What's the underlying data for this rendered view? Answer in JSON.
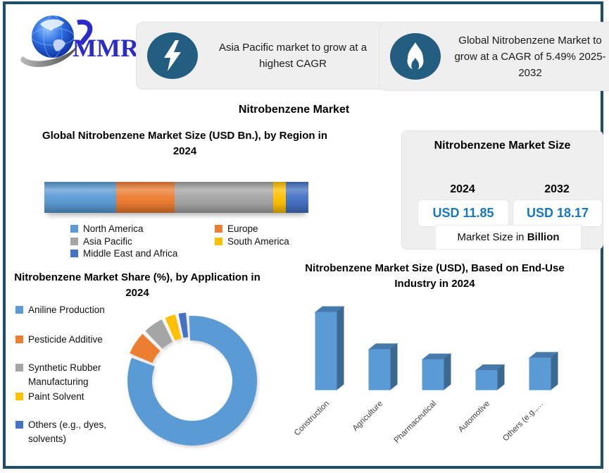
{
  "brand": {
    "logo_text": "MMR"
  },
  "heading": "Nitrobenzene Market",
  "callouts": [
    {
      "icon": "lightning-icon",
      "text": "Asia Pacific market to grow at a highest CAGR"
    },
    {
      "icon": "flame-icon",
      "text": "Global Nitrobenzene Market to grow at a CAGR of 5.49% 2025-2032"
    }
  ],
  "market_size_panel": {
    "title": "Nitrobenzene Market Size",
    "years": [
      "2024",
      "2032"
    ],
    "values": [
      "USD 11.85",
      "USD 18.17"
    ],
    "footnote_prefix": "Market Size in ",
    "footnote_bold": "Billion"
  },
  "colors": {
    "frame_border": "#1E4D6B",
    "panel_bg": "#EFEFEF",
    "icon_circle": "#235D7F",
    "value_blue": "#1878BD",
    "palette": [
      "#5B9BD5",
      "#ED7D31",
      "#A5A5A5",
      "#FFC000",
      "#4472C4"
    ],
    "bar3d_front": "#5B9BD5",
    "bar3d_top": "#4779AC",
    "bar3d_side": "#3B6992"
  },
  "chart_data": [
    {
      "id": "region_stacked_bar",
      "type": "bar",
      "variant": "horizontal-stacked-3d",
      "title": "Global Nitrobenzene Market  Size (USD Bn.), by Region in 2024",
      "categories": [
        "North America",
        "Europe",
        "Asia Pacific",
        "South America",
        "Middle East and Africa"
      ],
      "values_pct": [
        27.2,
        22.1,
        37.3,
        4.8,
        8.6
      ],
      "legend_position": "bottom-two-columns"
    },
    {
      "id": "application_donut",
      "type": "pie",
      "variant": "donut-exploded",
      "title": "Nitrobenzene Market Share (%), by Application in 2024",
      "labels": [
        "Aniline Production",
        "Pesticide Additive",
        "Synthetic Rubber Manufacturing",
        "Paint Solvent",
        "Others (e.g., dyes, solvents)"
      ],
      "values_pct": [
        82.2,
        6.4,
        5.6,
        3.3,
        2.5
      ],
      "legend_position": "left"
    },
    {
      "id": "enduse_bar3d",
      "type": "bar",
      "variant": "3d-column",
      "title": "Nitrobenzene Market Size (USD), Based on End-Use Industry in 2024",
      "categories": [
        "Construction",
        "Agriculture",
        "Pharmaceutical",
        "Automotive",
        "Others (e.g.,…"
      ],
      "values_rel": [
        100,
        52,
        39,
        25,
        41
      ],
      "ylabel": "",
      "xlabel": "",
      "grid": false
    }
  ]
}
